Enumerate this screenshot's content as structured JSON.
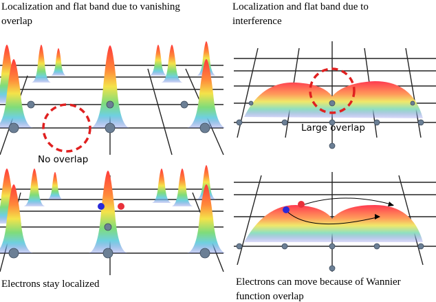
{
  "left": {
    "title": "Localization and flat band due to vanishing overlap",
    "label": "No overlap",
    "caption": "Electrons stay localized"
  },
  "right": {
    "title": "Localization and flat band due to interference",
    "label": "Large overlap",
    "caption": "Electrons can move because of Wannier function overlap"
  }
}
